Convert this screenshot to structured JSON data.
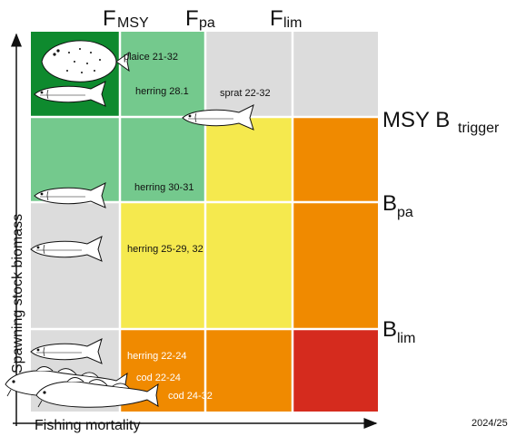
{
  "header_labels": {
    "fmsy": {
      "main": "F",
      "sub": "MSY"
    },
    "fpa": {
      "main": "F",
      "sub": "pa"
    },
    "flim": {
      "main": "F",
      "sub": "lim"
    }
  },
  "side_labels": {
    "msy_btrigger": {
      "main": "MSY B",
      "sub": "trigger"
    },
    "bpa": {
      "main": "B",
      "sub": "pa"
    },
    "blim": {
      "main": "B",
      "sub": "lim"
    }
  },
  "axes": {
    "y_label": "Spawning stock biomass",
    "x_label": "Fishing mortality"
  },
  "year_label": "2024/25",
  "colors": {
    "dark_green": "#0e8a2e",
    "light_green": "#74c98d",
    "grey": "#dcdcdc",
    "yellow": "#f5e94e",
    "orange": "#f08a00",
    "red": "#d52b1e"
  },
  "stocks": [
    {
      "name": "plaice 21-32",
      "fish": "flatfish-icon"
    },
    {
      "name": "herring 28.1",
      "fish": "herring-icon"
    },
    {
      "name": "sprat 22-32",
      "fish": "sprat-icon"
    },
    {
      "name": "herring 30-31",
      "fish": "herring-icon"
    },
    {
      "name": "herring 25-29, 32",
      "fish": "herring-icon"
    },
    {
      "name": "herring 22-24",
      "fish": "herring-icon"
    },
    {
      "name": "cod 22-24",
      "fish": "cod-icon"
    },
    {
      "name": "cod 24-32",
      "fish": "cod-icon"
    }
  ]
}
